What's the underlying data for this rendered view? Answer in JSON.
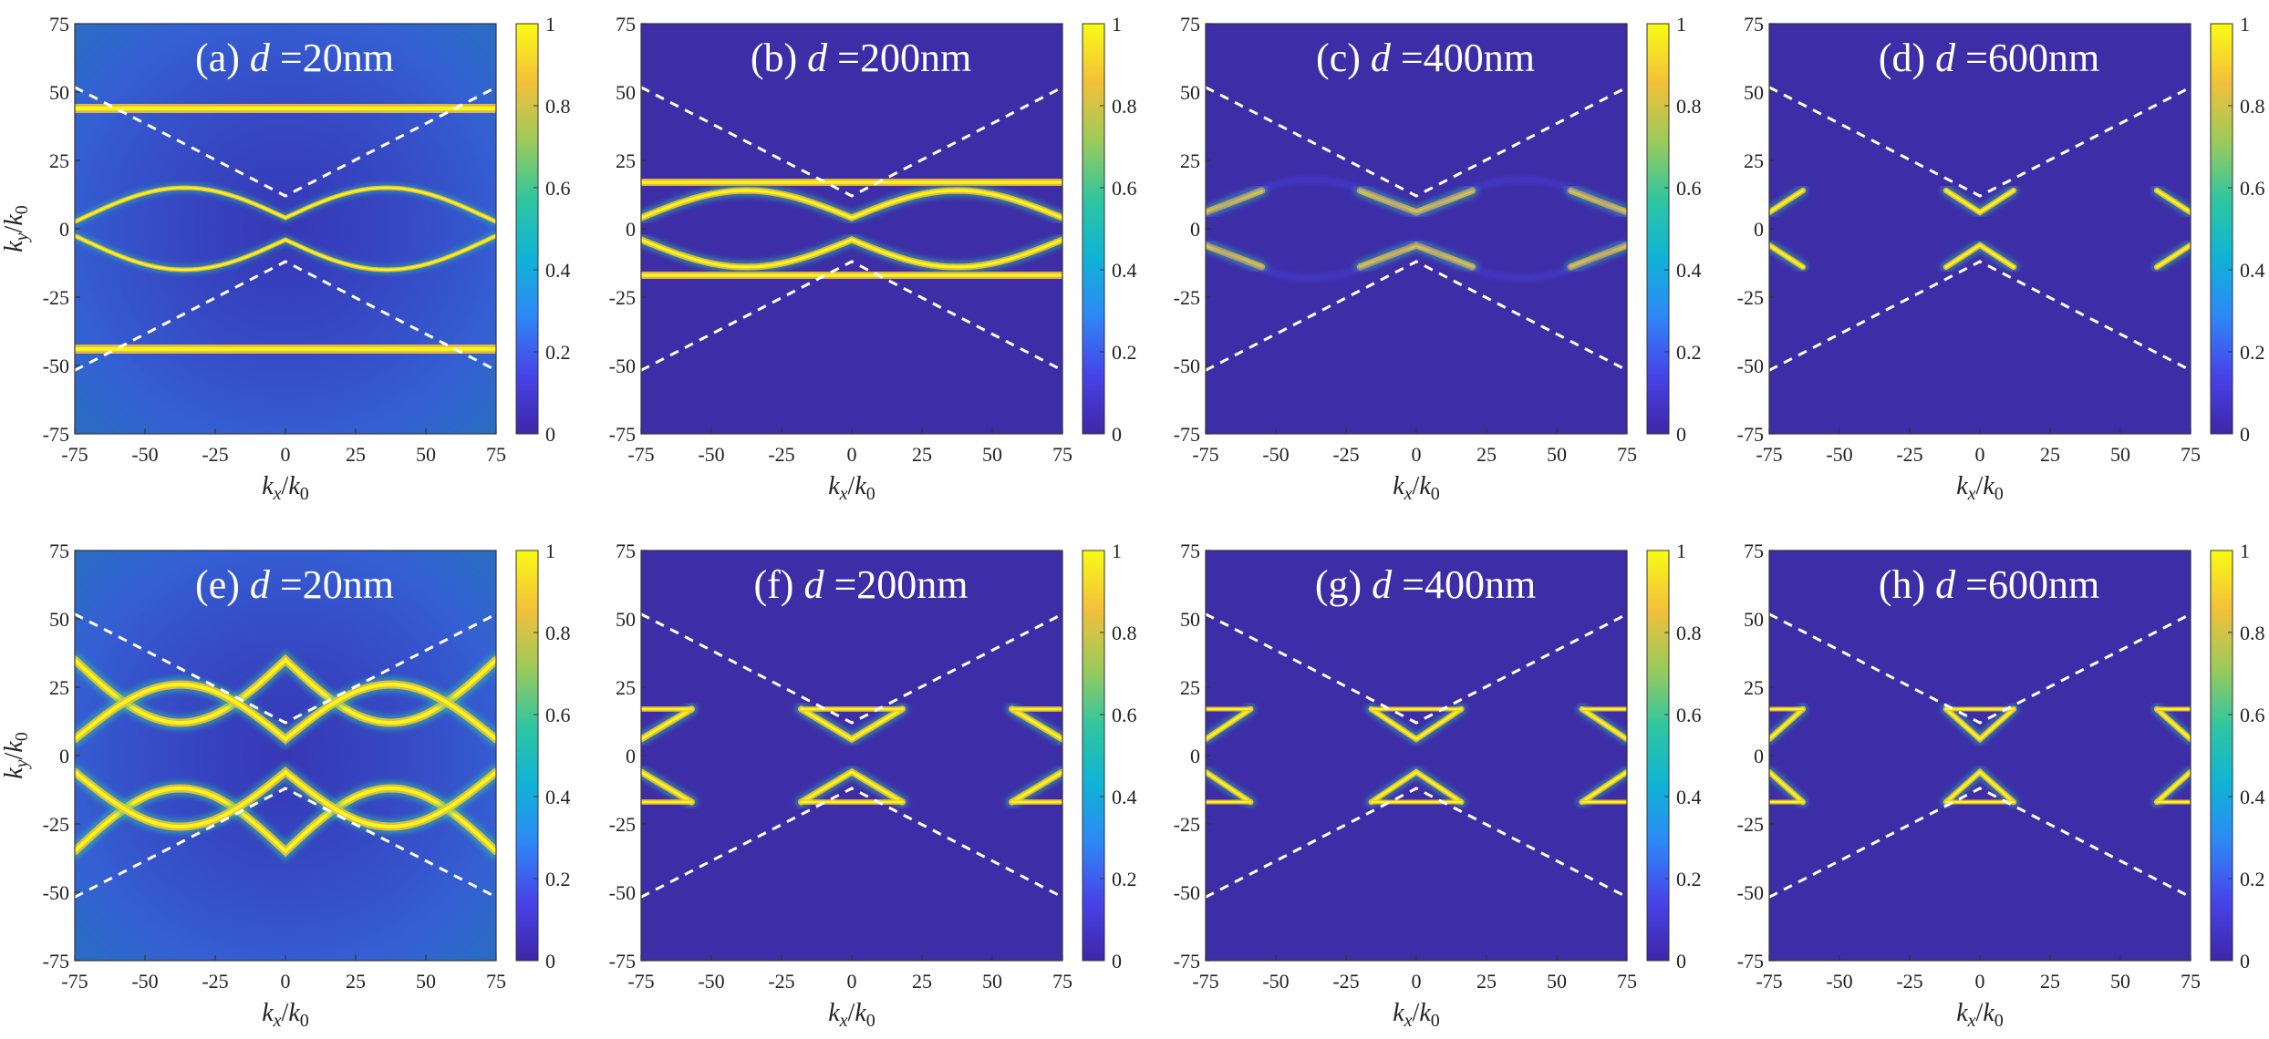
{
  "figure": {
    "description_rows": 2,
    "description_cols": 4
  },
  "chart_data": [
    {
      "type": "heatmap",
      "panel_label": "(a)",
      "d_var": "d",
      "equals": "=",
      "d_value": "20nm",
      "row": "top",
      "xlabel": "k_x/k_0",
      "ylabel": "k_y/k_0",
      "xlim": [
        -75,
        75
      ],
      "ylim": [
        -75,
        75
      ],
      "xticks": [
        -75,
        -50,
        -25,
        0,
        25,
        50,
        75
      ],
      "yticks": [
        75,
        50,
        25,
        0,
        -25,
        -50,
        -75
      ],
      "colorbar": {
        "min": 0,
        "max": 1,
        "ticks": [
          1,
          0.8,
          0.6,
          0.4,
          0.2,
          0
        ]
      }
    },
    {
      "type": "heatmap",
      "panel_label": "(b)",
      "d_var": "d",
      "equals": "=",
      "d_value": "200nm",
      "row": "top",
      "xlabel": "k_x/k_0",
      "ylabel": "",
      "xlim": [
        -75,
        75
      ],
      "ylim": [
        -75,
        75
      ],
      "xticks": [
        -75,
        -50,
        -25,
        0,
        25,
        50,
        75
      ],
      "yticks": [
        75,
        50,
        25,
        0,
        -25,
        -50,
        -75
      ],
      "colorbar": {
        "min": 0,
        "max": 1,
        "ticks": [
          1,
          0.8,
          0.6,
          0.4,
          0.2,
          0
        ]
      }
    },
    {
      "type": "heatmap",
      "panel_label": "(c)",
      "d_var": "d",
      "equals": "=",
      "d_value": "400nm",
      "row": "top",
      "xlabel": "k_x/k_0",
      "ylabel": "",
      "xlim": [
        -75,
        75
      ],
      "ylim": [
        -75,
        75
      ],
      "xticks": [
        -75,
        -50,
        -25,
        0,
        25,
        50,
        75
      ],
      "yticks": [
        75,
        50,
        25,
        0,
        -25,
        -50,
        -75
      ],
      "colorbar": {
        "min": 0,
        "max": 1,
        "ticks": [
          1,
          0.8,
          0.6,
          0.4,
          0.2,
          0
        ]
      }
    },
    {
      "type": "heatmap",
      "panel_label": "(d)",
      "d_var": "d",
      "equals": "=",
      "d_value": "600nm",
      "row": "top",
      "xlabel": "k_x/k_0",
      "ylabel": "",
      "xlim": [
        -75,
        75
      ],
      "ylim": [
        -75,
        75
      ],
      "xticks": [
        -75,
        -50,
        -25,
        0,
        25,
        50,
        75
      ],
      "yticks": [
        75,
        50,
        25,
        0,
        -25,
        -50,
        -75
      ],
      "colorbar": {
        "min": 0,
        "max": 1,
        "ticks": [
          1,
          0.8,
          0.6,
          0.4,
          0.2,
          0
        ]
      }
    },
    {
      "type": "heatmap",
      "panel_label": "(e)",
      "d_var": "d",
      "equals": "=",
      "d_value": "20nm",
      "row": "bottom",
      "xlabel": "k_x/k_0",
      "ylabel": "k_y/k_0",
      "xlim": [
        -75,
        75
      ],
      "ylim": [
        -75,
        75
      ],
      "xticks": [
        -75,
        -50,
        -25,
        0,
        25,
        50,
        75
      ],
      "yticks": [
        75,
        50,
        25,
        0,
        -25,
        -50,
        -75
      ],
      "colorbar": {
        "min": 0,
        "max": 1,
        "ticks": [
          1,
          0.8,
          0.6,
          0.4,
          0.2,
          0
        ]
      }
    },
    {
      "type": "heatmap",
      "panel_label": "(f)",
      "d_var": "d",
      "equals": "=",
      "d_value": "200nm",
      "row": "bottom",
      "xlabel": "k_x/k_0",
      "ylabel": "",
      "xlim": [
        -75,
        75
      ],
      "ylim": [
        -75,
        75
      ],
      "xticks": [
        -75,
        -50,
        -25,
        0,
        25,
        50,
        75
      ],
      "yticks": [
        75,
        50,
        25,
        0,
        -25,
        -50,
        -75
      ],
      "colorbar": {
        "min": 0,
        "max": 1,
        "ticks": [
          1,
          0.8,
          0.6,
          0.4,
          0.2,
          0
        ]
      }
    },
    {
      "type": "heatmap",
      "panel_label": "(g)",
      "d_var": "d",
      "equals": "=",
      "d_value": "400nm",
      "row": "bottom",
      "xlabel": "k_x/k_0",
      "ylabel": "",
      "xlim": [
        -75,
        75
      ],
      "ylim": [
        -75,
        75
      ],
      "xticks": [
        -75,
        -50,
        -25,
        0,
        25,
        50,
        75
      ],
      "yticks": [
        75,
        50,
        25,
        0,
        -25,
        -50,
        -75
      ],
      "colorbar": {
        "min": 0,
        "max": 1,
        "ticks": [
          1,
          0.8,
          0.6,
          0.4,
          0.2,
          0
        ]
      }
    },
    {
      "type": "heatmap",
      "panel_label": "(h)",
      "d_var": "d",
      "equals": "=",
      "d_value": "600nm",
      "row": "bottom",
      "xlabel": "k_x/k_0",
      "ylabel": "",
      "xlim": [
        -75,
        75
      ],
      "ylim": [
        -75,
        75
      ],
      "xticks": [
        -75,
        -50,
        -25,
        0,
        25,
        50,
        75
      ],
      "yticks": [
        75,
        50,
        25,
        0,
        -25,
        -50,
        -75
      ],
      "colorbar": {
        "min": 0,
        "max": 1,
        "ticks": [
          1,
          0.8,
          0.6,
          0.4,
          0.2,
          0
        ]
      }
    }
  ],
  "light_cone": {
    "description": "white dashed lines k_y = ±(12 + 0.53·|k_x|)",
    "offset": 12,
    "slope": 0.53
  },
  "colors": {
    "background": "#3d2ea8",
    "colormap": [
      "#3e26a8",
      "#4743e8",
      "#2e87f7",
      "#10b3d6",
      "#2fc6a0",
      "#9dca5a",
      "#f3c03a",
      "#f9fb14"
    ],
    "cone_line": "#ffffff"
  }
}
